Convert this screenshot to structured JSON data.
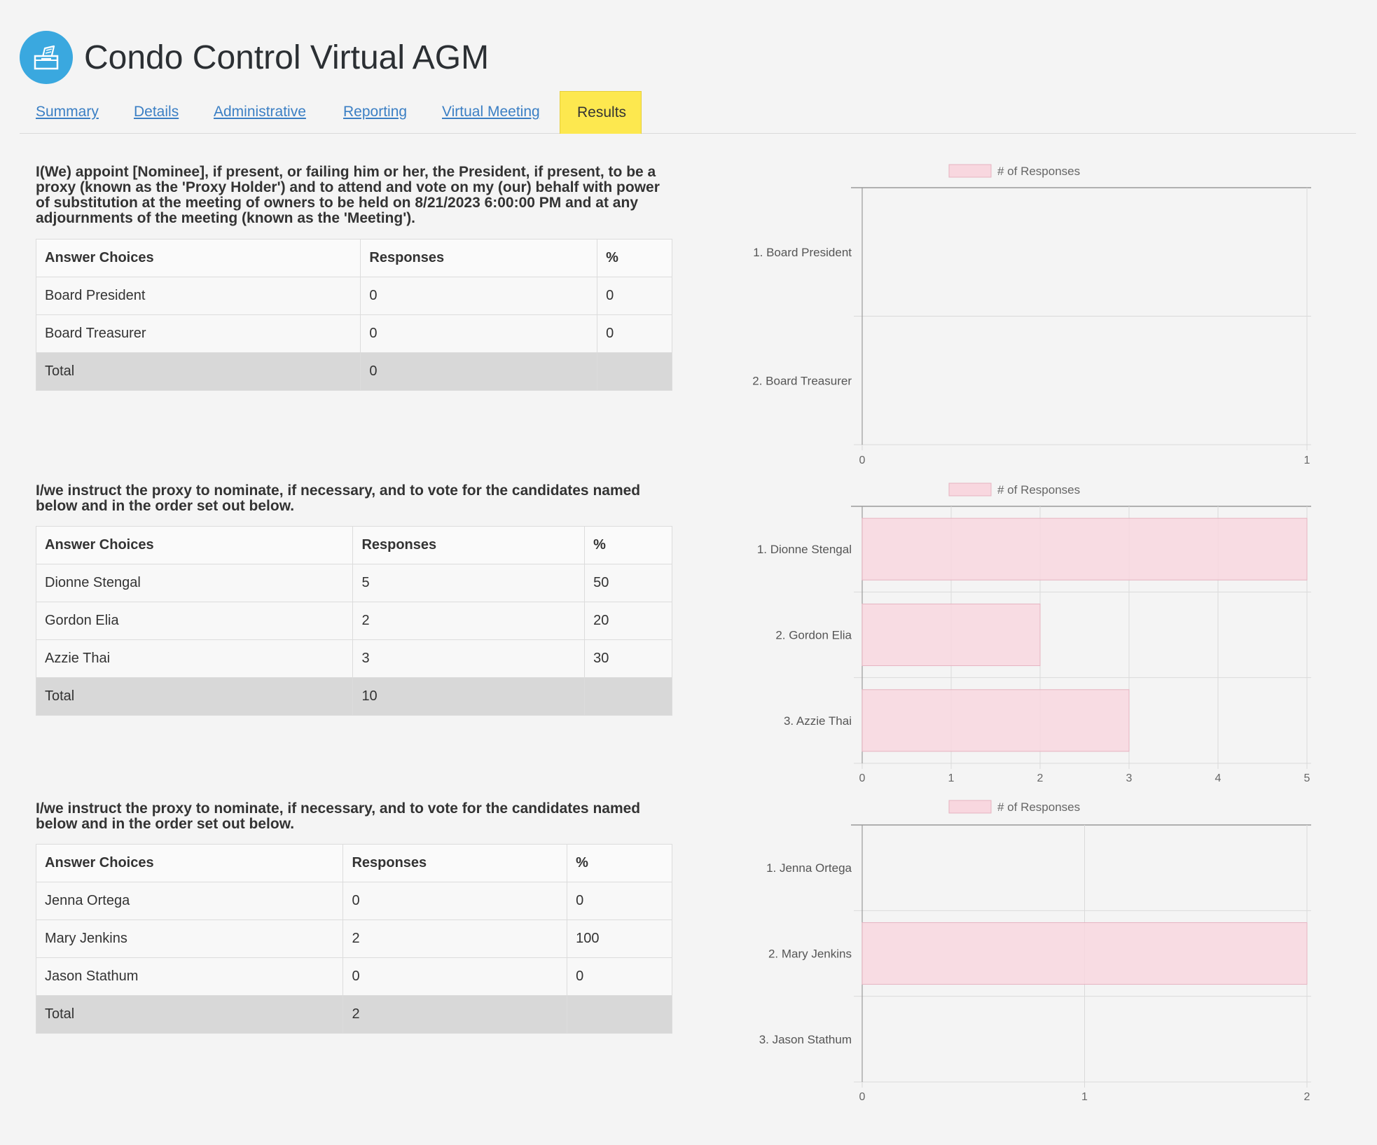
{
  "app": {
    "title": "Condo Control Virtual AGM",
    "logo_icon": "ballot-box-icon"
  },
  "tabs": [
    {
      "label": "Summary",
      "active": false
    },
    {
      "label": "Details",
      "active": false
    },
    {
      "label": "Administrative",
      "active": false
    },
    {
      "label": "Reporting",
      "active": false
    },
    {
      "label": "Virtual Meeting",
      "active": false
    },
    {
      "label": "Results",
      "active": true
    }
  ],
  "colors": {
    "accent": "#3aa8df",
    "active_tab": "#fde84f",
    "link": "#3b7fc4",
    "bar_fill": "#f8d7df",
    "bar_border": "#e6b3c0"
  },
  "questions": [
    {
      "text": "I(We) appoint [Nominee], if present, or failing him or her, the President, if present, to be a proxy (known as the 'Proxy Holder') and to attend and vote on my (our) behalf with power of substitution at the meeting of owners to be held on 8/21/2023 6:00:00 PM and at any adjournments of the meeting (known as the 'Meeting').",
      "headers": [
        "Answer Choices",
        "Responses",
        "%"
      ],
      "rows": [
        [
          "Board President",
          "0",
          "0"
        ],
        [
          "Board Treasurer",
          "0",
          "0"
        ]
      ],
      "total": [
        "Total",
        "0",
        ""
      ]
    },
    {
      "text": "I/we instruct the proxy to nominate, if necessary, and to vote for the candidates named below and in the order set out below.",
      "headers": [
        "Answer Choices",
        "Responses",
        "%"
      ],
      "rows": [
        [
          "Dionne Stengal",
          "5",
          "50"
        ],
        [
          "Gordon Elia",
          "2",
          "20"
        ],
        [
          "Azzie Thai",
          "3",
          "30"
        ]
      ],
      "total": [
        "Total",
        "10",
        ""
      ]
    },
    {
      "text": "I/we instruct the proxy to nominate, if necessary, and to vote for the candidates named below and in the order set out below.",
      "headers": [
        "Answer Choices",
        "Responses",
        "%"
      ],
      "rows": [
        [
          "Jenna Ortega",
          "0",
          "0"
        ],
        [
          "Mary Jenkins",
          "2",
          "100"
        ],
        [
          "Jason Stathum",
          "0",
          "0"
        ]
      ],
      "total": [
        "Total",
        "2",
        ""
      ]
    }
  ],
  "chart_data": [
    {
      "type": "bar",
      "orientation": "horizontal",
      "legend": "# of Responses",
      "legend_position": "top",
      "categories": [
        "1. Board President",
        "2. Board Treasurer"
      ],
      "values": [
        0,
        0
      ],
      "xlim": [
        0,
        1
      ],
      "xticks": [
        "0",
        "1"
      ],
      "grid": true
    },
    {
      "type": "bar",
      "orientation": "horizontal",
      "legend": "# of Responses",
      "legend_position": "top",
      "categories": [
        "1. Dionne Stengal",
        "2. Gordon Elia",
        "3. Azzie Thai"
      ],
      "values": [
        5,
        2,
        3
      ],
      "xlim": [
        0,
        5
      ],
      "xticks": [
        "0",
        "1",
        "2",
        "3",
        "4",
        "5"
      ],
      "grid": true
    },
    {
      "type": "bar",
      "orientation": "horizontal",
      "legend": "# of Responses",
      "legend_position": "top",
      "categories": [
        "1. Jenna Ortega",
        "2. Mary Jenkins",
        "3. Jason Stathum"
      ],
      "values": [
        0,
        2,
        0
      ],
      "xlim": [
        0,
        2
      ],
      "xticks": [
        "0",
        "1",
        "2"
      ],
      "grid": true
    }
  ]
}
